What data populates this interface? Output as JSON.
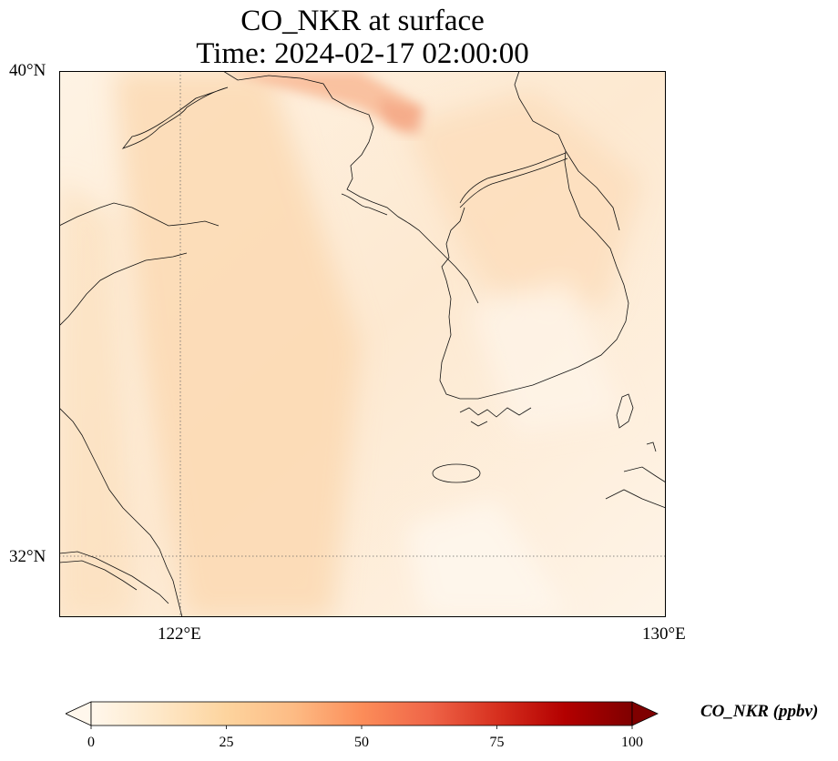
{
  "title": {
    "line1": "CO_NKR at surface",
    "line2": "Time: 2024-02-17 02:00:00"
  },
  "axes": {
    "lat_labels": [
      "40°N",
      "32°N"
    ],
    "lon_labels": [
      "122°E",
      "130°E"
    ],
    "lat_range": [
      31,
      40
    ],
    "lon_range": [
      120,
      130
    ],
    "gridlines": "dotted at 122°E and 32°N"
  },
  "colorbar": {
    "label": "CO_NKR (ppbv)",
    "min": 0,
    "max": 100,
    "ticks": [
      "0",
      "25",
      "50",
      "75",
      "100"
    ],
    "colormap": "OrRd",
    "extend": "both",
    "colors": [
      "#fff7ec",
      "#fee8c8",
      "#fdd49e",
      "#fdbb84",
      "#fc8d59",
      "#ef6548",
      "#d7301f",
      "#b30000",
      "#7f0000"
    ]
  },
  "field": {
    "background_color": "#fdeed9",
    "plume_color": "#fbd3a8",
    "hotspot_color": "#f6b594"
  }
}
